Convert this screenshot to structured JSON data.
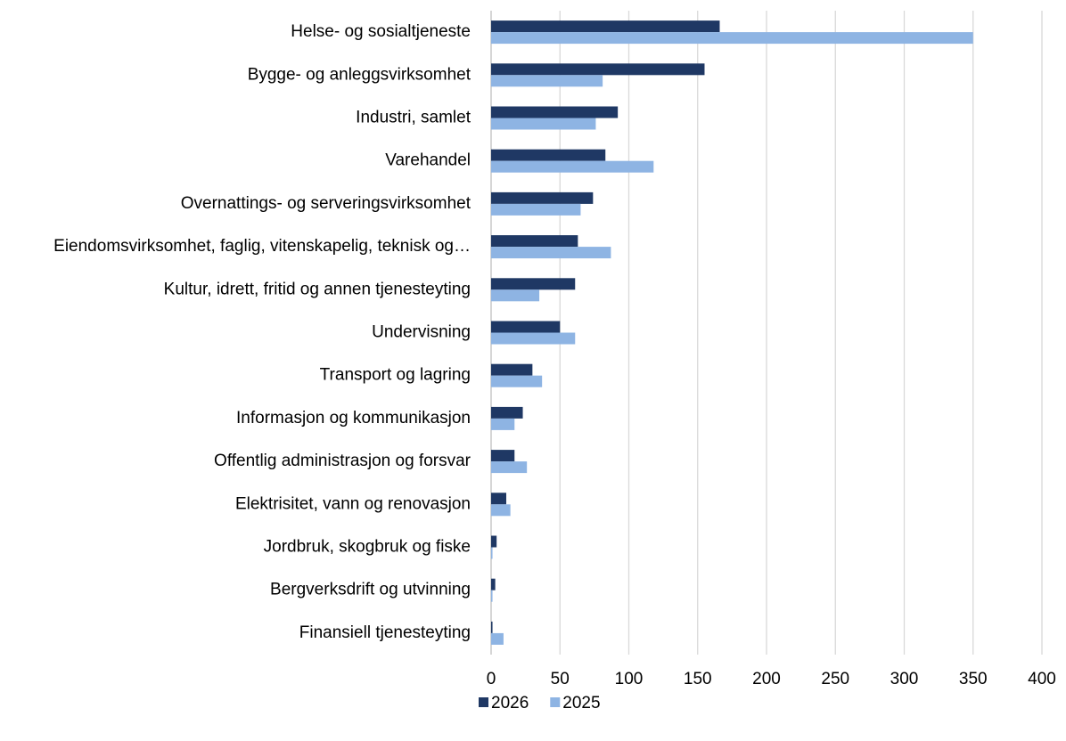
{
  "chart_data": {
    "type": "barh",
    "categories": [
      "Helse- og sosialtjeneste",
      "Bygge- og anleggsvirksomhet",
      "Industri, samlet",
      "Varehandel",
      "Overnattings- og serveringsvirksomhet",
      "Eiendomsvirksomhet, faglig, vitenskapelig, teknisk og…",
      "Kultur, idrett, fritid og annen tjenesteyting",
      "Undervisning",
      "Transport og lagring",
      "Informasjon og kommunikasjon",
      "Offentlig administrasjon og forsvar",
      "Elektrisitet, vann og renovasjon",
      "Jordbruk, skogbruk og fiske",
      "Bergverksdrift og utvinning",
      "Finansiell tjenesteyting"
    ],
    "series": [
      {
        "name": "2026",
        "color": "#1f3864",
        "values": [
          166,
          155,
          92,
          83,
          74,
          63,
          61,
          50,
          30,
          23,
          17,
          11,
          4,
          3,
          1
        ]
      },
      {
        "name": "2025",
        "color": "#8eb4e3",
        "values": [
          350,
          81,
          76,
          118,
          65,
          87,
          35,
          61,
          37,
          17,
          26,
          14,
          1,
          1,
          9
        ]
      }
    ],
    "xlim": [
      0,
      400
    ],
    "xticks": [
      0,
      50,
      100,
      150,
      200,
      250,
      300,
      350,
      400
    ],
    "grid": true,
    "legend": "bottom"
  }
}
